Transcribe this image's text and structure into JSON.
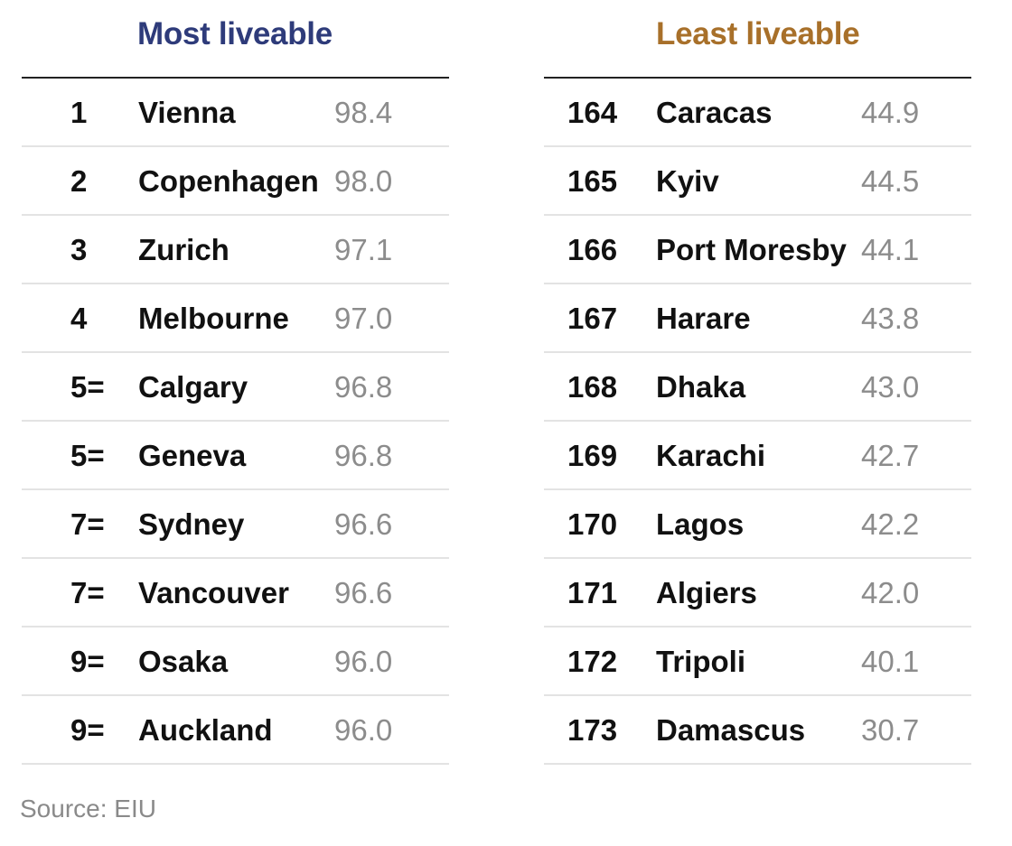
{
  "chart_data": {
    "type": "table",
    "source": "Source: EIU",
    "colors": {
      "most": "#2e3b7a",
      "least": "#a8702a"
    },
    "tables": [
      {
        "title": "Most liveable",
        "rows": [
          {
            "rank": "1",
            "city": "Vienna",
            "score": "98.4"
          },
          {
            "rank": "2",
            "city": "Copenhagen",
            "score": "98.0"
          },
          {
            "rank": "3",
            "city": "Zurich",
            "score": "97.1"
          },
          {
            "rank": "4",
            "city": "Melbourne",
            "score": "97.0"
          },
          {
            "rank": "5=",
            "city": "Calgary",
            "score": "96.8"
          },
          {
            "rank": "5=",
            "city": "Geneva",
            "score": "96.8"
          },
          {
            "rank": "7=",
            "city": "Sydney",
            "score": "96.6"
          },
          {
            "rank": "7=",
            "city": "Vancouver",
            "score": "96.6"
          },
          {
            "rank": "9=",
            "city": "Osaka",
            "score": "96.0"
          },
          {
            "rank": "9=",
            "city": "Auckland",
            "score": "96.0"
          }
        ]
      },
      {
        "title": "Least liveable",
        "rows": [
          {
            "rank": "164",
            "city": "Caracas",
            "score": "44.9"
          },
          {
            "rank": "165",
            "city": "Kyiv",
            "score": "44.5"
          },
          {
            "rank": "166",
            "city": "Port Moresby",
            "score": "44.1"
          },
          {
            "rank": "167",
            "city": "Harare",
            "score": "43.8"
          },
          {
            "rank": "168",
            "city": "Dhaka",
            "score": "43.0"
          },
          {
            "rank": "169",
            "city": "Karachi",
            "score": "42.7"
          },
          {
            "rank": "170",
            "city": "Lagos",
            "score": "42.2"
          },
          {
            "rank": "171",
            "city": "Algiers",
            "score": "42.0"
          },
          {
            "rank": "172",
            "city": "Tripoli",
            "score": "40.1"
          },
          {
            "rank": "173",
            "city": "Damascus",
            "score": "30.7"
          }
        ]
      }
    ]
  }
}
